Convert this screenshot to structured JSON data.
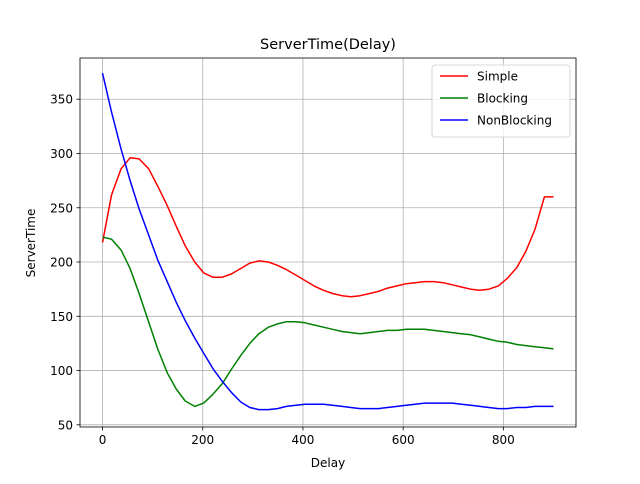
{
  "chart_data": {
    "type": "line",
    "title": "ServerTime(Delay)",
    "xlabel": "Delay",
    "ylabel": "ServerTime",
    "xlim": [
      -45,
      945
    ],
    "ylim": [
      48,
      388
    ],
    "x_ticks": [
      0,
      200,
      400,
      600,
      800
    ],
    "x_tick_labels": [
      "0",
      "200",
      "400",
      "600",
      "800"
    ],
    "y_ticks": [
      50,
      100,
      150,
      200,
      250,
      300,
      350
    ],
    "y_tick_labels": [
      "50",
      "100",
      "150",
      "200",
      "250",
      "300",
      "350"
    ],
    "grid": true,
    "legend_position": "top-right",
    "x": [
      0,
      18,
      37,
      55,
      73,
      92,
      110,
      129,
      147,
      165,
      184,
      202,
      220,
      239,
      257,
      276,
      294,
      312,
      331,
      349,
      367,
      386,
      404,
      422,
      441,
      459,
      478,
      496,
      514,
      533,
      551,
      569,
      588,
      606,
      624,
      643,
      661,
      680,
      698,
      716,
      735,
      753,
      771,
      790,
      808,
      827,
      845,
      863,
      882,
      900
    ],
    "series": [
      {
        "name": "Simple",
        "color": "#ff0000",
        "values": [
          218,
          262,
          286,
          296,
          295,
          286,
          270,
          252,
          233,
          215,
          200,
          190,
          186,
          186,
          189,
          194,
          199,
          201,
          200,
          197,
          193,
          188,
          183,
          178,
          174,
          171,
          169,
          168,
          169,
          171,
          173,
          176,
          178,
          180,
          181,
          182,
          182,
          181,
          179,
          177,
          175,
          174,
          175,
          178,
          185,
          195,
          210,
          230,
          260,
          260
        ]
      },
      {
        "name": "Blocking",
        "color": "#008000",
        "values": [
          223,
          221,
          211,
          194,
          171,
          145,
          120,
          98,
          83,
          72,
          67,
          70,
          78,
          88,
          101,
          114,
          125,
          134,
          140,
          143,
          145,
          145,
          144,
          142,
          140,
          138,
          136,
          135,
          134,
          135,
          136,
          137,
          137,
          138,
          138,
          138,
          137,
          136,
          135,
          134,
          133,
          131,
          129,
          127,
          126,
          124,
          123,
          122,
          121,
          120
        ]
      },
      {
        "name": "NonBlocking",
        "color": "#0000ff",
        "values": [
          374,
          338,
          304,
          275,
          249,
          225,
          202,
          182,
          163,
          146,
          130,
          116,
          102,
          90,
          80,
          71,
          66,
          64,
          64,
          65,
          67,
          68,
          69,
          69,
          69,
          68,
          67,
          66,
          65,
          65,
          65,
          66,
          67,
          68,
          69,
          70,
          70,
          70,
          70,
          69,
          68,
          67,
          66,
          65,
          65,
          66,
          66,
          67,
          67,
          67
        ]
      }
    ]
  }
}
